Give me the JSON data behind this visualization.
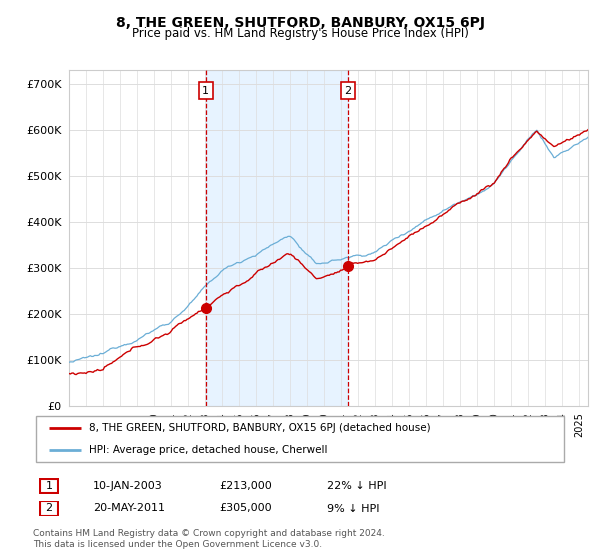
{
  "title": "8, THE GREEN, SHUTFORD, BANBURY, OX15 6PJ",
  "subtitle": "Price paid vs. HM Land Registry's House Price Index (HPI)",
  "ytick_values": [
    0,
    100000,
    200000,
    300000,
    400000,
    500000,
    600000,
    700000
  ],
  "ylim": [
    0,
    730000
  ],
  "xlim_start": 1995.0,
  "xlim_end": 2025.5,
  "hpi_color": "#6baed6",
  "hpi_fill_color": "#ddeeff",
  "price_color": "#cc0000",
  "vline_color": "#cc0000",
  "marker1_x": 2003.04,
  "marker1_y": 213000,
  "marker1_label": "1",
  "marker2_x": 2011.38,
  "marker2_y": 305000,
  "marker2_label": "2",
  "legend_line1": "8, THE GREEN, SHUTFORD, BANBURY, OX15 6PJ (detached house)",
  "legend_line2": "HPI: Average price, detached house, Cherwell",
  "table_row1": [
    "1",
    "10-JAN-2003",
    "£213,000",
    "22% ↓ HPI"
  ],
  "table_row2": [
    "2",
    "20-MAY-2011",
    "£305,000",
    "9% ↓ HPI"
  ],
  "footer": "Contains HM Land Registry data © Crown copyright and database right 2024.\nThis data is licensed under the Open Government Licence v3.0.",
  "background_color": "#ffffff",
  "grid_color": "#dddddd"
}
